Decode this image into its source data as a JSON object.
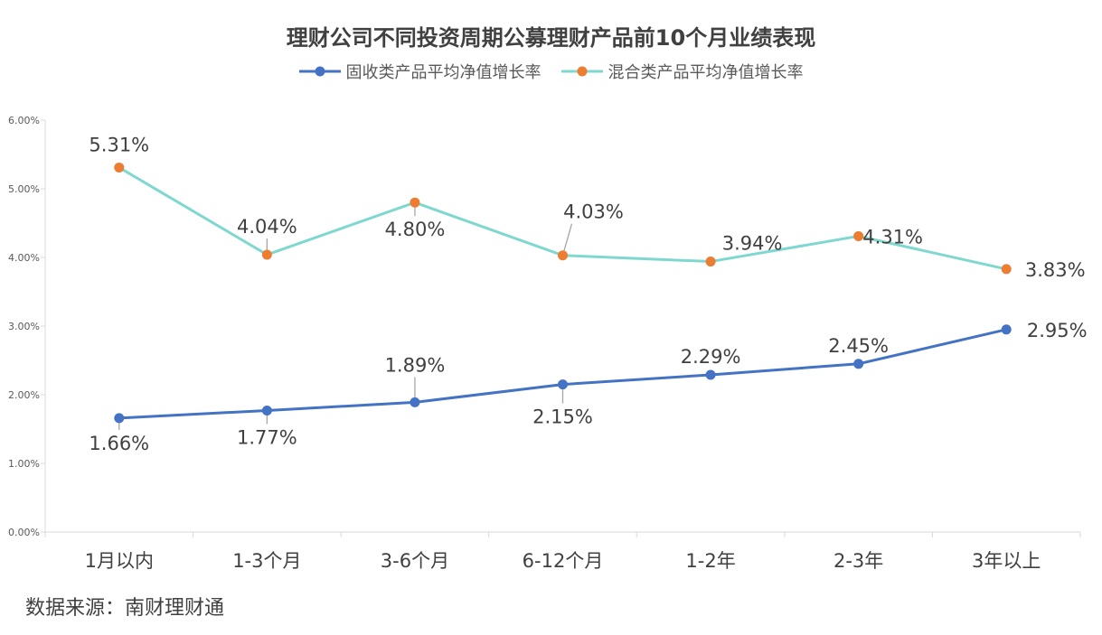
{
  "chart_data": {
    "type": "line",
    "title": "理财公司不同投资周期公募理财产品前10个月业绩表现",
    "categories": [
      "1月以内",
      "1-3个月",
      "3-6个月",
      "6-12个月",
      "1-2年",
      "2-3年",
      "3年以上"
    ],
    "series": [
      {
        "name": "固收类产品平均净值增长率",
        "color": "#4472C4",
        "values": [
          1.66,
          1.77,
          1.89,
          2.15,
          2.29,
          2.45,
          2.95
        ],
        "labels": [
          "1.66%",
          "1.77%",
          "1.89%",
          "2.15%",
          "2.29%",
          "2.45%",
          "2.95%"
        ]
      },
      {
        "name": "混合类产品平均净值增长率",
        "color": "#7FD8D0",
        "marker_color": "#ED7D31",
        "values": [
          5.31,
          4.04,
          4.8,
          4.03,
          3.94,
          4.31,
          3.83
        ],
        "labels": [
          "5.31%",
          "4.04%",
          "4.80%",
          "4.03%",
          "3.94%",
          "4.31%",
          "3.83%"
        ]
      }
    ],
    "ylim": [
      0,
      6
    ],
    "yticks": [
      "0.00%",
      "1.00%",
      "2.00%",
      "3.00%",
      "4.00%",
      "5.00%",
      "6.00%"
    ],
    "legend_position": "top",
    "grid": false
  },
  "source": "数据来源：南财理财通"
}
